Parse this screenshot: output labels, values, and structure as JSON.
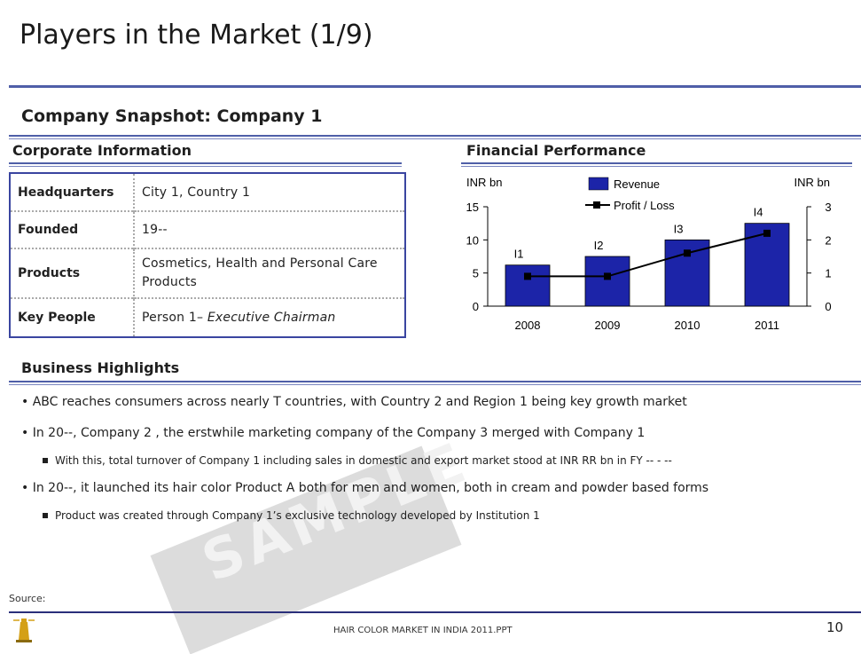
{
  "slide": {
    "title": "Players in the Market (1/9)",
    "subtitle": "Company Snapshot: Company 1"
  },
  "corporate": {
    "heading": "Corporate Information",
    "rows": [
      {
        "key": "Headquarters",
        "value": "City 1, Country 1"
      },
      {
        "key": "Founded",
        "value": "19--"
      },
      {
        "key": "Products",
        "value": "Cosmetics, Health and Personal Care Products"
      },
      {
        "key": "Key People",
        "value_plain": "Person 1– ",
        "value_italic": "Executive Chairman"
      }
    ]
  },
  "financial": {
    "heading": "Financial Performance"
  },
  "chart_data": {
    "type": "bar",
    "categories": [
      "2008",
      "2009",
      "2010",
      "2011"
    ],
    "series": [
      {
        "name": "Revenue",
        "type": "bar",
        "axis": "left",
        "values": [
          6.2,
          7.5,
          10.0,
          12.5
        ],
        "labels": [
          "I1",
          "I2",
          "I3",
          "I4"
        ]
      },
      {
        "name": "Profit / Loss",
        "type": "line",
        "axis": "right",
        "values": [
          0.9,
          0.9,
          1.6,
          2.2
        ]
      }
    ],
    "ylabel_left": "INR bn",
    "ylabel_right": "INR bn",
    "ylim_left": [
      0,
      15
    ],
    "ylim_right": [
      0,
      3
    ],
    "yticks_left": [
      "0",
      "5",
      "10",
      "15"
    ],
    "yticks_right": [
      "0",
      "1",
      "2",
      "3"
    ],
    "legend": [
      "Revenue",
      "Profit / Loss"
    ],
    "colors": {
      "bar": "#1c24a8",
      "line": "#000000"
    }
  },
  "business": {
    "heading": "Business Highlights",
    "b1": "• ABC reaches consumers across nearly T countries, with Country 2 and Region 1 being key growth market",
    "b2": "• In 20--, Company 2 , the erstwhile marketing company of the Company 3 merged with Company 1",
    "s1": "With this, total turnover of Company 1 including sales in domestic and export market stood at INR  RR bn in FY -- - --",
    "b3": "• In 20--, it launched its hair color Product A both for men and women, both in cream and powder based forms",
    "s2": "Product was created  through Company 1’s exclusive technology developed by Institution 1"
  },
  "watermark": "SAMPLE",
  "footer": {
    "source": "Source:",
    "file": "HAIR COLOR MARKET IN INDIA 2011.PPT",
    "page": "10"
  }
}
